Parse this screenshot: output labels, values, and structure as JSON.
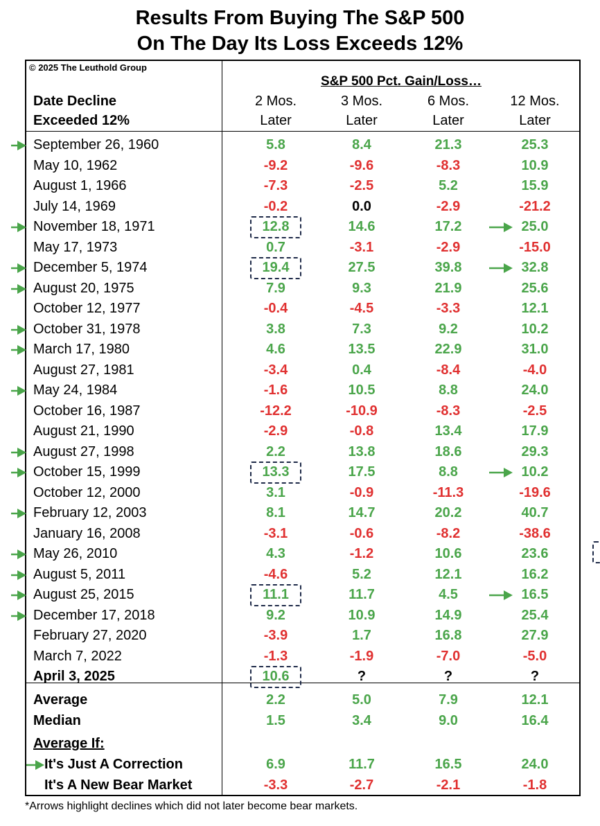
{
  "title": {
    "line1": "Results From Buying The S&P 500",
    "line2": "On The Day Its Loss Exceeds 12%"
  },
  "copyright": "© 2025 The Leuthold Group",
  "super_header": "S&P 500 Pct. Gain/Loss…",
  "date_header": {
    "line1": "Date Decline",
    "line2": "Exceeded 12%"
  },
  "columns": [
    {
      "line1": "2 Mos.",
      "line2": "Later"
    },
    {
      "line1": "3 Mos.",
      "line2": "Later"
    },
    {
      "line1": "6 Mos.",
      "line2": "Later"
    },
    {
      "line1": "12 Mos.",
      "line2": "Later"
    }
  ],
  "colors": {
    "positive": "#4aa54a",
    "negative": "#e03030",
    "box": "#1e2a48",
    "arrow": "#4aa54a"
  },
  "rows": [
    {
      "date": "September 26, 1960",
      "arrow": true,
      "values": [
        "5.8",
        "8.4",
        "21.3",
        "25.3"
      ]
    },
    {
      "date": "May 10, 1962",
      "arrow": false,
      "values": [
        "-9.2",
        "-9.6",
        "-8.3",
        "10.9"
      ]
    },
    {
      "date": "August 1, 1966",
      "arrow": false,
      "values": [
        "-7.3",
        "-2.5",
        "5.2",
        "15.9"
      ]
    },
    {
      "date": "July 14, 1969",
      "arrow": false,
      "values": [
        "-0.2",
        "0.0",
        "-2.9",
        "-21.2"
      ]
    },
    {
      "date": "November 18, 1971",
      "arrow": true,
      "values": [
        "12.8",
        "14.6",
        "17.2",
        "25.0"
      ],
      "boxed": true,
      "arrow12": true
    },
    {
      "date": "May 17, 1973",
      "arrow": false,
      "values": [
        "0.7",
        "-3.1",
        "-2.9",
        "-15.0"
      ]
    },
    {
      "date": "December 5, 1974",
      "arrow": true,
      "values": [
        "19.4",
        "27.5",
        "39.8",
        "32.8"
      ],
      "boxed": true,
      "arrow12": true
    },
    {
      "date": "August 20, 1975",
      "arrow": true,
      "values": [
        "7.9",
        "9.3",
        "21.9",
        "25.6"
      ]
    },
    {
      "date": "October 12, 1977",
      "arrow": false,
      "values": [
        "-0.4",
        "-4.5",
        "-3.3",
        "12.1"
      ]
    },
    {
      "date": "October 31, 1978",
      "arrow": true,
      "values": [
        "3.8",
        "7.3",
        "9.2",
        "10.2"
      ]
    },
    {
      "date": "March 17, 1980",
      "arrow": true,
      "values": [
        "4.6",
        "13.5",
        "22.9",
        "31.0"
      ]
    },
    {
      "date": "August 27, 1981",
      "arrow": false,
      "values": [
        "-3.4",
        "0.4",
        "-8.4",
        "-4.0"
      ]
    },
    {
      "date": "May 24, 1984",
      "arrow": true,
      "values": [
        "-1.6",
        "10.5",
        "8.8",
        "24.0"
      ]
    },
    {
      "date": "October 16, 1987",
      "arrow": false,
      "values": [
        "-12.2",
        "-10.9",
        "-8.3",
        "-2.5"
      ]
    },
    {
      "date": "August 21, 1990",
      "arrow": false,
      "values": [
        "-2.9",
        "-0.8",
        "13.4",
        "17.9"
      ]
    },
    {
      "date": "August 27, 1998",
      "arrow": true,
      "values": [
        "2.2",
        "13.8",
        "18.6",
        "29.3"
      ]
    },
    {
      "date": "October 15, 1999",
      "arrow": true,
      "values": [
        "13.3",
        "17.5",
        "8.8",
        "10.2"
      ],
      "boxed": true,
      "arrow12": true
    },
    {
      "date": "October 12, 2000",
      "arrow": false,
      "values": [
        "3.1",
        "-0.9",
        "-11.3",
        "-19.6"
      ]
    },
    {
      "date": "February 12, 2003",
      "arrow": true,
      "values": [
        "8.1",
        "14.7",
        "20.2",
        "40.7"
      ]
    },
    {
      "date": "January 16, 2008",
      "arrow": false,
      "values": [
        "-3.1",
        "-0.6",
        "-8.2",
        "-38.6"
      ]
    },
    {
      "date": "May 26, 2010",
      "arrow": true,
      "values": [
        "4.3",
        "-1.2",
        "10.6",
        "23.6"
      ]
    },
    {
      "date": "August 5, 2011",
      "arrow": true,
      "values": [
        "-4.6",
        "5.2",
        "12.1",
        "16.2"
      ]
    },
    {
      "date": "August 25, 2015",
      "arrow": true,
      "values": [
        "11.1",
        "11.7",
        "4.5",
        "16.5"
      ],
      "boxed": true,
      "arrow12": true
    },
    {
      "date": "December 17, 2018",
      "arrow": true,
      "values": [
        "9.2",
        "10.9",
        "14.9",
        "25.4"
      ]
    },
    {
      "date": "February 27, 2020",
      "arrow": false,
      "values": [
        "-3.9",
        "1.7",
        "16.8",
        "27.9"
      ]
    },
    {
      "date": "March 7, 2022",
      "arrow": false,
      "values": [
        "-1.3",
        "-1.9",
        "-7.0",
        "-5.0"
      ]
    },
    {
      "date": "April 3, 2025",
      "arrow": false,
      "bold": true,
      "values": [
        "10.6",
        "?",
        "?",
        "?"
      ],
      "boxed": true
    }
  ],
  "summary": [
    {
      "label": "Average",
      "values": [
        "2.2",
        "5.0",
        "7.9",
        "12.1"
      ]
    },
    {
      "label": "Median",
      "values": [
        "1.5",
        "3.4",
        "9.0",
        "16.4"
      ]
    }
  ],
  "average_if_label": "Average If:",
  "scenarios": [
    {
      "label": "It's Just A Correction",
      "arrow": true,
      "values": [
        "6.9",
        "11.7",
        "16.5",
        "24.0"
      ]
    },
    {
      "label": "It's A New Bear Market",
      "arrow": false,
      "values": [
        "-3.3",
        "-2.7",
        "-2.1",
        "-1.8"
      ]
    }
  ],
  "footnote": "*Arrows highlight declines which did not later become bear markets."
}
